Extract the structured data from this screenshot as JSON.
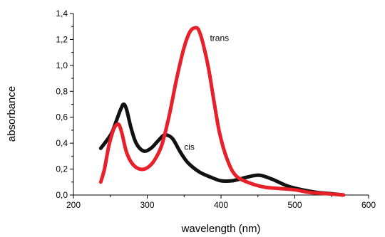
{
  "chart_data": {
    "type": "line",
    "title": "",
    "xlabel": "wavelength (nm)",
    "ylabel": "absorbance",
    "xlim": [
      200,
      600
    ],
    "ylim": [
      0.0,
      1.4
    ],
    "x_ticks": [
      200,
      300,
      400,
      500,
      600
    ],
    "x_tick_labels": [
      "200",
      "300",
      "400",
      "500",
      "600"
    ],
    "y_ticks": [
      0.0,
      0.2,
      0.4,
      0.6,
      0.8,
      1.0,
      1.2,
      1.4
    ],
    "y_tick_labels": [
      "0,0",
      "0,2",
      "0,4",
      "0,6",
      "0,8",
      "1,0",
      "1,2",
      "1,4"
    ],
    "grid": false,
    "series": [
      {
        "name": "cis",
        "color": "#111111",
        "x": [
          237,
          245,
          252,
          258,
          264,
          268,
          272,
          278,
          285,
          295,
          305,
          315,
          322,
          328,
          335,
          345,
          355,
          370,
          385,
          400,
          415,
          430,
          445,
          455,
          470,
          490,
          510,
          530,
          550,
          566
        ],
        "y": [
          0.36,
          0.42,
          0.48,
          0.57,
          0.66,
          0.7,
          0.66,
          0.52,
          0.4,
          0.34,
          0.36,
          0.42,
          0.46,
          0.46,
          0.43,
          0.33,
          0.25,
          0.18,
          0.14,
          0.11,
          0.11,
          0.13,
          0.15,
          0.15,
          0.12,
          0.07,
          0.04,
          0.02,
          0.01,
          0.0
        ]
      },
      {
        "name": "trans",
        "color": "#e8202a",
        "x": [
          237,
          242,
          248,
          254,
          258,
          262,
          266,
          272,
          280,
          290,
          300,
          310,
          320,
          330,
          340,
          350,
          358,
          365,
          370,
          376,
          383,
          390,
          398,
          408,
          420,
          440,
          460,
          480,
          500,
          520,
          545,
          566
        ],
        "y": [
          0.1,
          0.2,
          0.38,
          0.5,
          0.54,
          0.54,
          0.47,
          0.33,
          0.24,
          0.2,
          0.21,
          0.27,
          0.39,
          0.62,
          0.9,
          1.14,
          1.26,
          1.29,
          1.27,
          1.16,
          0.98,
          0.74,
          0.48,
          0.28,
          0.15,
          0.09,
          0.06,
          0.05,
          0.04,
          0.02,
          0.01,
          0.0
        ]
      }
    ],
    "annotations": [
      {
        "text": "trans",
        "x": 385,
        "y": 1.19
      },
      {
        "text": "cis",
        "x": 350,
        "y": 0.35
      }
    ]
  }
}
